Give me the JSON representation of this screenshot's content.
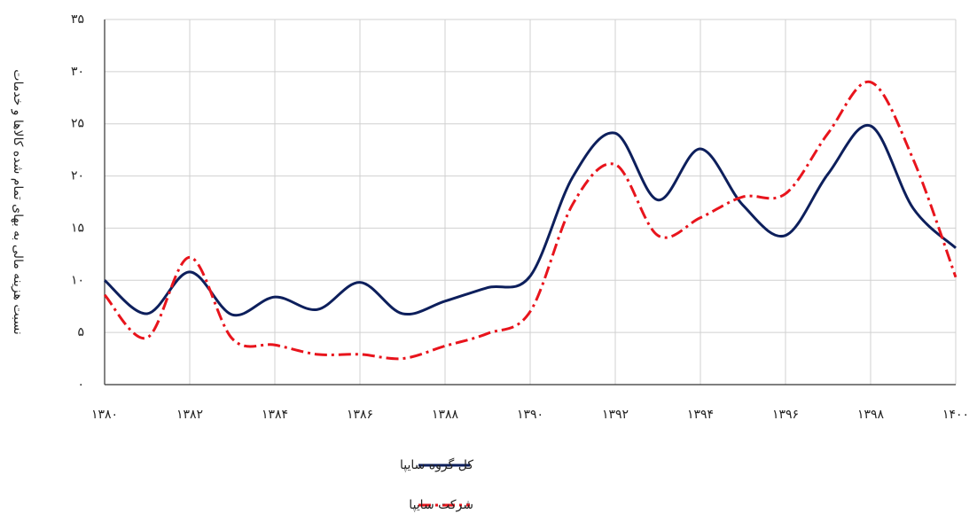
{
  "chart_data": {
    "type": "line",
    "y_label": "نسبت هزینه مالی به بهای تمام شده کالاها و خدمات",
    "x": [
      1380,
      1381,
      1382,
      1383,
      1384,
      1385,
      1386,
      1387,
      1388,
      1389,
      1390,
      1391,
      1392,
      1393,
      1394,
      1395,
      1396,
      1397,
      1398,
      1399,
      1400
    ],
    "series": [
      {
        "name": "کل گروه سایپا",
        "color": "#0d1f5c",
        "dash": "solid",
        "values": [
          10.0,
          6.8,
          10.8,
          6.7,
          8.4,
          7.2,
          9.8,
          6.8,
          8.0,
          9.3,
          10.4,
          19.9,
          24.1,
          17.7,
          22.6,
          17.2,
          14.3,
          20.2,
          24.8,
          16.9,
          13.1
        ]
      },
      {
        "name": "شرکت سایپا",
        "color": "#e8141c",
        "dash": "dashdot",
        "values": [
          8.6,
          4.5,
          12.2,
          4.4,
          3.8,
          2.9,
          2.9,
          2.5,
          3.7,
          4.9,
          7.0,
          17.3,
          21.1,
          14.3,
          16.0,
          18.0,
          18.3,
          24.1,
          29.0,
          21.6,
          10.3
        ]
      }
    ],
    "xlim": [
      1380,
      1400
    ],
    "xticks": [
      {
        "value": 1380,
        "label": "۱۳۸۰"
      },
      {
        "value": 1382,
        "label": "۱۳۸۲"
      },
      {
        "value": 1384,
        "label": "۱۳۸۴"
      },
      {
        "value": 1386,
        "label": "۱۳۸۶"
      },
      {
        "value": 1388,
        "label": "۱۳۸۸"
      },
      {
        "value": 1390,
        "label": "۱۳۹۰"
      },
      {
        "value": 1392,
        "label": "۱۳۹۲"
      },
      {
        "value": 1394,
        "label": "۱۳۹۴"
      },
      {
        "value": 1396,
        "label": "۱۳۹۶"
      },
      {
        "value": 1398,
        "label": "۱۳۹۸"
      },
      {
        "value": 1400,
        "label": "۱۴۰۰"
      }
    ],
    "ylim": [
      0,
      35
    ],
    "yticks": [
      {
        "value": 0,
        "label": "۰"
      },
      {
        "value": 5,
        "label": "۵"
      },
      {
        "value": 10,
        "label": "۱۰"
      },
      {
        "value": 15,
        "label": "۱۵"
      },
      {
        "value": 20,
        "label": "۲۰"
      },
      {
        "value": 25,
        "label": "۲۵"
      },
      {
        "value": 30,
        "label": "۳۰"
      },
      {
        "value": 35,
        "label": "۳۵"
      }
    ],
    "grid": true,
    "legend": "bottom"
  }
}
